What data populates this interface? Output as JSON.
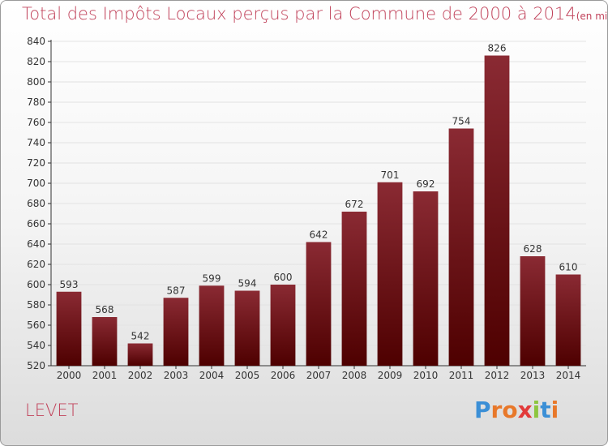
{
  "title": "Total des Impôts Locaux perçus par la Commune de 2000 à 2014",
  "unit": "(en milliers d'€)",
  "commune": "LEVET",
  "brand": {
    "text": "Proxiti",
    "letters": [
      {
        "char": "P",
        "color": "#3b8fd6"
      },
      {
        "char": "r",
        "color": "#e8782a"
      },
      {
        "char": "o",
        "color": "#e8782a"
      },
      {
        "char": "x",
        "color": "#e23a3a"
      },
      {
        "char": "i",
        "color": "#8dc63f"
      },
      {
        "char": "t",
        "color": "#3b8fd6"
      },
      {
        "char": "i",
        "color": "#e8782a"
      }
    ]
  },
  "colors": {
    "bar_top": "#8a2a33",
    "bar_bottom": "#4e0000",
    "accent": "#c1435b",
    "grid": "#e2e2e2"
  },
  "chart_data": {
    "type": "bar",
    "categories": [
      "2000",
      "2001",
      "2002",
      "2003",
      "2004",
      "2005",
      "2006",
      "2007",
      "2008",
      "2009",
      "2010",
      "2011",
      "2012",
      "2013",
      "2014"
    ],
    "values": [
      593,
      568,
      542,
      587,
      599,
      594,
      600,
      642,
      672,
      701,
      692,
      754,
      826,
      628,
      610
    ],
    "ylim": [
      520,
      840
    ],
    "yticks": [
      520,
      540,
      560,
      580,
      600,
      620,
      640,
      660,
      680,
      700,
      720,
      740,
      760,
      780,
      800,
      820,
      840
    ],
    "grid": true,
    "xlabel": "",
    "ylabel": ""
  }
}
